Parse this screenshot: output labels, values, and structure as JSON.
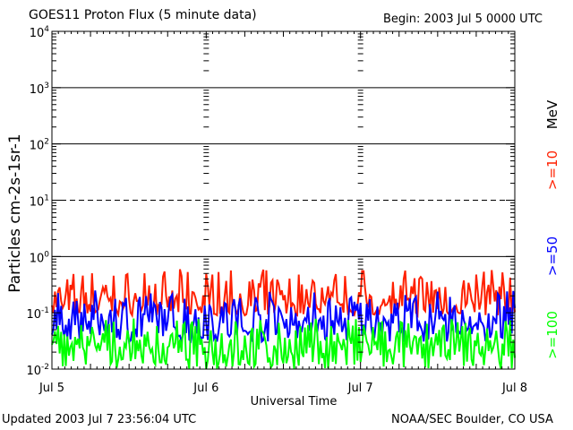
{
  "header": {
    "title": "GOES11 Proton Flux (5 minute data)",
    "begin": "Begin: 2003 Jul 5 0000 UTC"
  },
  "footer": {
    "updated": "Updated 2003 Jul  7 23:56:04 UTC",
    "credit": "NOAA/SEC Boulder, CO USA"
  },
  "chart_data": {
    "type": "line",
    "title": "GOES11 Proton Flux (5 minute data)",
    "xlabel": "Universal Time",
    "ylabel": "Particles cm-2s-1sr-1",
    "yscale": "log",
    "ylim": [
      0.01,
      10000
    ],
    "y_ticks": [
      {
        "mant": "10",
        "exp": "-2",
        "value": 0.01
      },
      {
        "mant": "10",
        "exp": "-1",
        "value": 0.1
      },
      {
        "mant": "10",
        "exp": "0",
        "value": 1
      },
      {
        "mant": "10",
        "exp": "1",
        "value": 10
      },
      {
        "mant": "10",
        "exp": "2",
        "value": 100
      },
      {
        "mant": "10",
        "exp": "3",
        "value": 1000
      },
      {
        "mant": "10",
        "exp": "4",
        "value": 10000
      }
    ],
    "x_ticks": [
      "Jul 5",
      "Jul 6",
      "Jul 7",
      "Jul 8"
    ],
    "xlim_days": [
      0,
      3
    ],
    "threshold_lines": [
      {
        "value": 1,
        "style": "solid"
      },
      {
        "value": 10,
        "style": "dashed"
      },
      {
        "value": 100,
        "style": "solid"
      },
      {
        "value": 1000,
        "style": "solid"
      }
    ],
    "units_label": "MeV",
    "series": [
      {
        "name": ">=10",
        "color": "#ff2000",
        "min": 0.09,
        "max": 0.6,
        "typical": 0.14
      },
      {
        "name": ">=50",
        "color": "#0000ff",
        "min": 0.03,
        "max": 0.25,
        "typical": 0.07
      },
      {
        "name": ">=100",
        "color": "#00ff00",
        "min": 0.01,
        "max": 0.08,
        "typical": 0.025
      }
    ]
  }
}
